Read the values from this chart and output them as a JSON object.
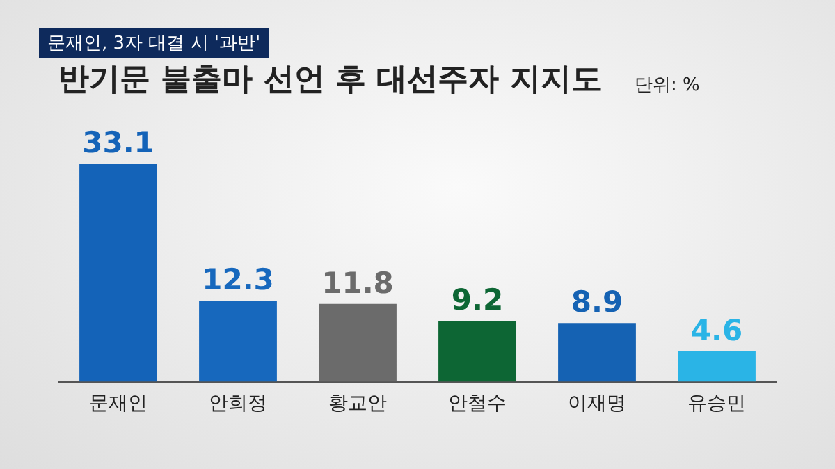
{
  "chart_data": {
    "type": "bar",
    "subtitle": "문재인, 3자 대결 시 '과반'",
    "title": "반기문 불출마 선언 후 대선주자 지지도",
    "annotations": [
      "단위: %"
    ],
    "categories": [
      "문재인",
      "안희정",
      "황교안",
      "안철수",
      "이재명",
      "유승민"
    ],
    "values": [
      33.1,
      12.3,
      11.8,
      9.2,
      8.9,
      4.6
    ],
    "colors": [
      "#1463b8",
      "#1768bd",
      "#6b6b6b",
      "#0d6634",
      "#1562b3",
      "#2ab4e6"
    ],
    "data_labels": true,
    "grid": false,
    "legend": false
  }
}
